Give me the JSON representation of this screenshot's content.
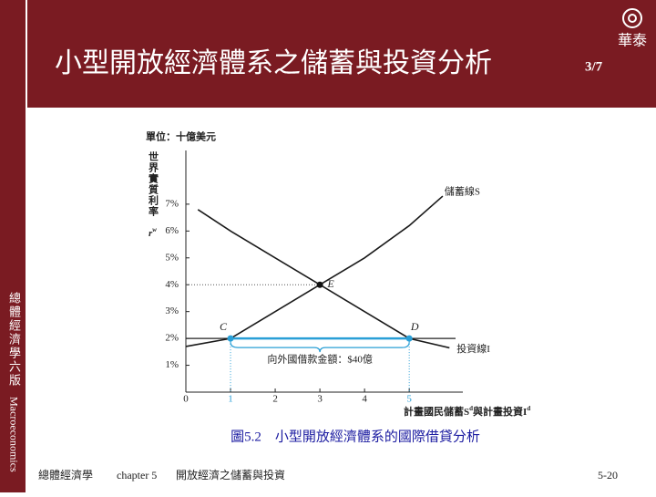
{
  "slide": {
    "title": "小型開放經濟體系之儲蓄與投資分析",
    "page_of": "3/7",
    "logo": "華泰",
    "sidebar_cn": "總體經濟學六版",
    "sidebar_en": "Macroeconomics",
    "footer_book": "總體經濟學",
    "footer_chapter": "chapter 5",
    "footer_topic": "開放經濟之儲蓄與投資",
    "footer_page": "5-20",
    "caption": "圖5.2　小型開放經濟體系的國際借貸分析"
  },
  "chart_data": {
    "type": "line",
    "unit_label": "單位：十億美元",
    "y_label": "世界實質利率",
    "y_symbol": "r",
    "y_symbol_sup": "w",
    "x_label": "計畫國民儲蓄S",
    "x_label_sup1": "d",
    "x_label_mid": "與計畫投資I",
    "x_label_sup2": "d",
    "xlim": [
      0,
      6.2
    ],
    "ylim": [
      0,
      9
    ],
    "xticks": [
      0,
      1,
      2,
      3,
      4,
      5
    ],
    "yticks": [
      {
        "value": 1,
        "label": "1%"
      },
      {
        "value": 2,
        "label": "2%"
      },
      {
        "value": 3,
        "label": "3%"
      },
      {
        "value": 4,
        "label": "4%"
      },
      {
        "value": 5,
        "label": "5%"
      },
      {
        "value": 6,
        "label": "6%"
      },
      {
        "value": 7,
        "label": "7%"
      }
    ],
    "series": [
      {
        "name": "儲蓄線S",
        "color": "#1a1a1a",
        "x": [
          0,
          1,
          2,
          3,
          4,
          5,
          5.75
        ],
        "values": [
          1.7,
          2,
          3,
          4,
          5,
          6.2,
          7.3
        ]
      },
      {
        "name": "投資線I",
        "color": "#1a1a1a",
        "x": [
          0.27,
          1,
          2,
          3,
          4,
          5,
          5.9
        ],
        "values": [
          6.8,
          6,
          5,
          4,
          3,
          2,
          1.65
        ]
      }
    ],
    "world_rate": 2,
    "points": [
      {
        "label": "C",
        "x": 1,
        "y": 2
      },
      {
        "label": "D",
        "x": 5,
        "y": 2
      },
      {
        "label": "E",
        "x": 3,
        "y": 4
      }
    ],
    "borrowing": {
      "from": 1,
      "to": 5,
      "label": "向外國借款金額：$40億",
      "color": "#2a9fd6"
    }
  }
}
